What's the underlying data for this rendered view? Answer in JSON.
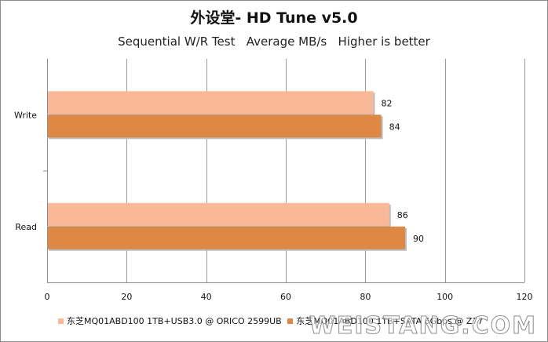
{
  "chart_data": {
    "type": "bar",
    "orientation": "horizontal",
    "title": "外设堂- HD Tune v5.0",
    "subtitle": "Sequential W/R Test   Average MB/s   Higher is better",
    "categories": [
      "Write",
      "Read"
    ],
    "series": [
      {
        "name": "东芝MQ01ABD100 1TB+USB3.0 @ ORICO 2599UB",
        "values": [
          82,
          86
        ],
        "color": "#f9b897"
      },
      {
        "name": "东芝MQ01ABD100 1TB+SATA 6Gbps @ Z77",
        "values": [
          84,
          90
        ],
        "color": "#de8845"
      }
    ],
    "xlim": [
      0,
      120
    ],
    "xticks": [
      0,
      20,
      40,
      60,
      80,
      100,
      120
    ],
    "grid": true,
    "legend_position": "bottom"
  },
  "watermark": "WEISTANG.COM"
}
